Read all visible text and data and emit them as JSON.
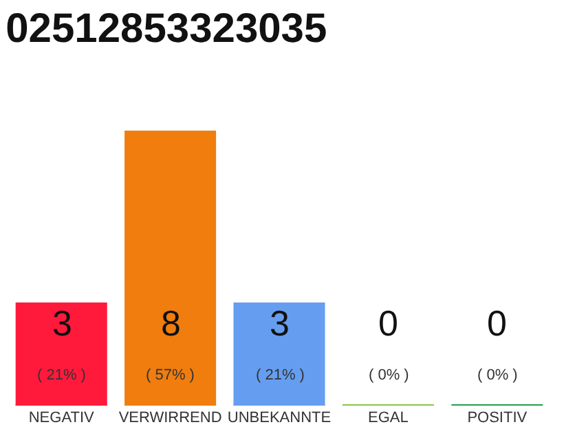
{
  "chart_data": {
    "type": "bar",
    "title": "02512853323035",
    "categories": [
      "NEGATIV",
      "VERWIRREND",
      "UNBEKANNTE",
      "EGAL",
      "POSITIV"
    ],
    "values": [
      3,
      8,
      3,
      0,
      0
    ],
    "colors": [
      "#ff1a3c",
      "#f07d0e",
      "#659ef0",
      "#8bc34a",
      "#22a04b"
    ],
    "value_labels": [
      "3\n( 21% )",
      "8\n( 57% )",
      "3\n( 21% )",
      "0\n( 0% )",
      "0\n( 0% )"
    ]
  }
}
